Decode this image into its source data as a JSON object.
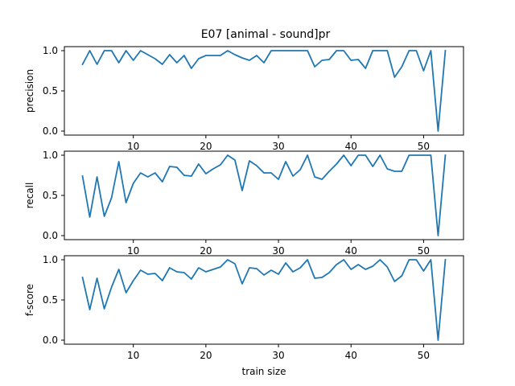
{
  "figure": {
    "title": "E07 [animal - sound]pr"
  },
  "colors": {
    "line": "#1f77b4"
  },
  "chart_data": [
    {
      "type": "line",
      "title": "E07 [animal - sound]pr",
      "xlabel": "",
      "ylabel": "precision",
      "xlim": [
        0.5,
        55.5
      ],
      "ylim": [
        -0.05,
        1.05
      ],
      "xticks": [
        10,
        20,
        30,
        40,
        50
      ],
      "yticks": [
        0.0,
        0.5,
        1.0
      ],
      "xtick_labels": [
        "10",
        "20",
        "30",
        "40",
        "50"
      ],
      "ytick_labels": [
        "0.0",
        "0.5",
        "1.0"
      ],
      "show_xtick_labels": true,
      "grid": false,
      "series": [
        {
          "x": [
            3,
            4,
            5,
            6,
            7,
            8,
            9,
            10,
            11,
            12,
            13,
            14,
            15,
            16,
            17,
            18,
            19,
            20,
            21,
            22,
            23,
            24,
            25,
            26,
            27,
            28,
            29,
            30,
            31,
            32,
            33,
            34,
            35,
            36,
            37,
            38,
            39,
            40,
            41,
            42,
            43,
            44,
            45,
            46,
            47,
            48,
            49,
            50,
            51,
            52,
            53
          ],
          "y": [
            0.83,
            1.0,
            0.83,
            1.0,
            1.0,
            0.85,
            1.0,
            0.88,
            1.0,
            0.95,
            0.9,
            0.83,
            0.95,
            0.85,
            0.94,
            0.78,
            0.9,
            0.94,
            0.94,
            0.94,
            1.0,
            0.95,
            0.91,
            0.88,
            0.94,
            0.85,
            1.0,
            1.0,
            1.0,
            1.0,
            1.0,
            1.0,
            0.8,
            0.88,
            0.89,
            1.0,
            1.0,
            0.88,
            0.89,
            0.78,
            1.0,
            1.0,
            1.0,
            0.67,
            0.8,
            1.0,
            1.0,
            0.75,
            1.0,
            0.0,
            1.0
          ]
        }
      ]
    },
    {
      "type": "line",
      "title": "",
      "xlabel": "",
      "ylabel": "recall",
      "xlim": [
        0.5,
        55.5
      ],
      "ylim": [
        -0.05,
        1.05
      ],
      "xticks": [
        10,
        20,
        30,
        40,
        50
      ],
      "yticks": [
        0.0,
        0.5,
        1.0
      ],
      "xtick_labels": [
        "10",
        "20",
        "30",
        "40",
        "50"
      ],
      "ytick_labels": [
        "0.0",
        "0.5",
        "1.0"
      ],
      "show_xtick_labels": true,
      "grid": false,
      "series": [
        {
          "x": [
            3,
            4,
            5,
            6,
            7,
            8,
            9,
            10,
            11,
            12,
            13,
            14,
            15,
            16,
            17,
            18,
            19,
            20,
            21,
            22,
            23,
            24,
            25,
            26,
            27,
            28,
            29,
            30,
            31,
            32,
            33,
            34,
            35,
            36,
            37,
            38,
            39,
            40,
            41,
            42,
            43,
            44,
            45,
            46,
            47,
            48,
            49,
            50,
            51,
            52,
            53
          ],
          "y": [
            0.74,
            0.23,
            0.73,
            0.24,
            0.47,
            0.92,
            0.41,
            0.65,
            0.78,
            0.73,
            0.78,
            0.67,
            0.86,
            0.85,
            0.75,
            0.74,
            0.89,
            0.77,
            0.83,
            0.88,
            1.0,
            0.94,
            0.56,
            0.93,
            0.87,
            0.78,
            0.78,
            0.7,
            0.92,
            0.74,
            0.82,
            1.0,
            0.73,
            0.7,
            0.8,
            0.89,
            1.0,
            0.87,
            1.0,
            1.0,
            0.86,
            1.0,
            0.83,
            0.8,
            0.8,
            1.0,
            1.0,
            1.0,
            1.0,
            0.0,
            1.0
          ]
        }
      ]
    },
    {
      "type": "line",
      "title": "",
      "xlabel": "train size",
      "ylabel": "f-score",
      "xlim": [
        0.5,
        55.5
      ],
      "ylim": [
        -0.05,
        1.05
      ],
      "xticks": [
        10,
        20,
        30,
        40,
        50
      ],
      "yticks": [
        0.0,
        0.5,
        1.0
      ],
      "xtick_labels": [
        "10",
        "20",
        "30",
        "40",
        "50"
      ],
      "ytick_labels": [
        "0.0",
        "0.5",
        "1.0"
      ],
      "show_xtick_labels": true,
      "grid": false,
      "series": [
        {
          "x": [
            3,
            4,
            5,
            6,
            7,
            8,
            9,
            10,
            11,
            12,
            13,
            14,
            15,
            16,
            17,
            18,
            19,
            20,
            21,
            22,
            23,
            24,
            25,
            26,
            27,
            28,
            29,
            30,
            31,
            32,
            33,
            34,
            35,
            36,
            37,
            38,
            39,
            40,
            41,
            42,
            43,
            44,
            45,
            46,
            47,
            48,
            49,
            50,
            51,
            52,
            53
          ],
          "y": [
            0.78,
            0.38,
            0.77,
            0.39,
            0.66,
            0.88,
            0.59,
            0.74,
            0.87,
            0.82,
            0.83,
            0.74,
            0.9,
            0.85,
            0.84,
            0.76,
            0.9,
            0.85,
            0.88,
            0.91,
            1.0,
            0.95,
            0.7,
            0.9,
            0.89,
            0.81,
            0.87,
            0.82,
            0.96,
            0.85,
            0.9,
            1.0,
            0.77,
            0.78,
            0.84,
            0.94,
            1.0,
            0.88,
            0.94,
            0.88,
            0.92,
            1.0,
            0.91,
            0.73,
            0.8,
            1.0,
            1.0,
            0.86,
            1.0,
            0.0,
            1.0
          ]
        }
      ]
    }
  ]
}
